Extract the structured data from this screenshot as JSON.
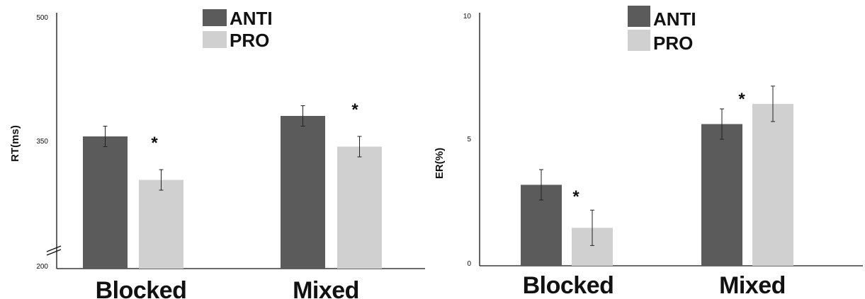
{
  "colors": {
    "ANTI": "#5b5b5b",
    "PRO": "#d0d0d0",
    "axis": "#111111",
    "error": "#222222"
  },
  "chart_data": [
    {
      "type": "bar",
      "categories": [
        "Blocked",
        "Mixed"
      ],
      "series": [
        {
          "name": "ANTI",
          "values": [
            355,
            379
          ],
          "errors": [
            12,
            12
          ]
        },
        {
          "name": "PRO",
          "values": [
            304,
            343
          ],
          "errors": [
            12,
            12
          ]
        }
      ],
      "ylabel": "RT(ms)",
      "yticks": [
        "500",
        "350",
        "200"
      ],
      "ylim": [
        200,
        500
      ],
      "axis_break": true,
      "significance": [
        "*",
        "*"
      ],
      "legend": [
        "ANTI",
        "PRO"
      ],
      "legend_position": "top-center",
      "grid": false
    },
    {
      "type": "bar",
      "categories": [
        "Blocked",
        "Mixed"
      ],
      "series": [
        {
          "name": "ANTI",
          "values": [
            3.2,
            5.6
          ],
          "errors": [
            0.6,
            0.6
          ]
        },
        {
          "name": "PRO",
          "values": [
            1.5,
            6.4
          ],
          "errors": [
            0.7,
            0.7
          ]
        }
      ],
      "ylabel": "ER(%)",
      "yticks": [
        "10",
        "5",
        "0"
      ],
      "ylim": [
        0,
        10
      ],
      "axis_break": false,
      "significance": [
        "*",
        "*"
      ],
      "legend": [
        "ANTI",
        "PRO"
      ],
      "legend_position": "top-center",
      "grid": false
    }
  ]
}
